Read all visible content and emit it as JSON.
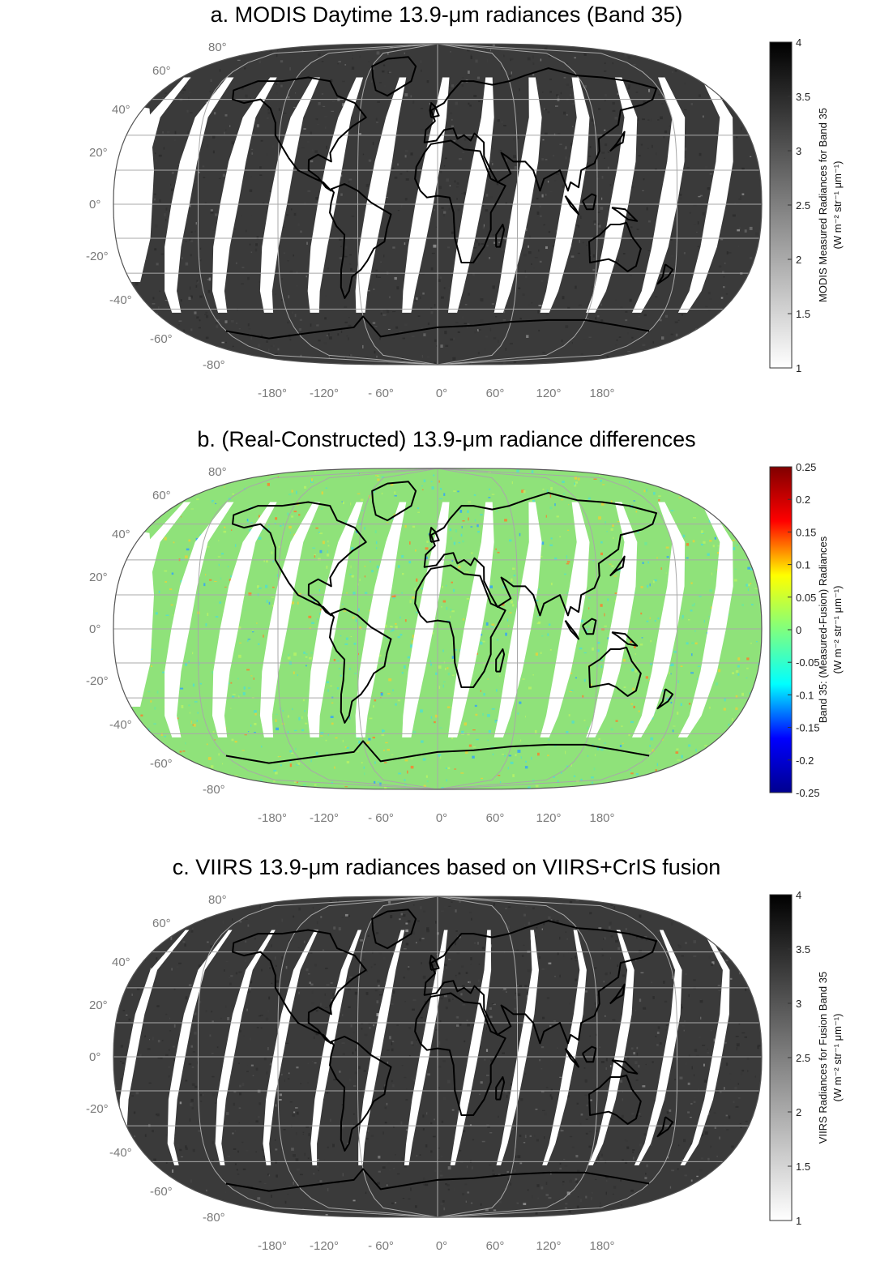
{
  "panels": [
    {
      "id": "a",
      "title": "a. MODIS Daytime 13.9-μm radiances (Band 35)",
      "scheme": "gray",
      "colorbar": {
        "label_line1": "MODIS Measured Radiances for Band 35",
        "label_line2": "(W m⁻² str⁻¹ μm⁻¹)",
        "ticks": [
          "4",
          "3.5",
          "3",
          "2.5",
          "2",
          "1.5",
          "1"
        ],
        "range": [
          1,
          4
        ],
        "colors": [
          "#ffffff",
          "#000000"
        ]
      }
    },
    {
      "id": "b",
      "title": "b. (Real-Constructed) 13.9-μm radiance differences",
      "scheme": "jet",
      "colorbar": {
        "label_line1": "Band 35: (Measured-Fusion) Radiances",
        "label_line2": "(W m⁻² str⁻¹ μm⁻¹)",
        "ticks": [
          "0.25",
          "0.2",
          "0.15",
          "0.1",
          "0.05",
          "0",
          "-0.05",
          "-0.1",
          "-0.15",
          "-0.2",
          "-0.25"
        ],
        "range": [
          -0.25,
          0.25
        ],
        "colors": [
          "#00008f",
          "#0000ff",
          "#00ffff",
          "#7fff7f",
          "#ffff00",
          "#ff0000",
          "#800000"
        ]
      }
    },
    {
      "id": "c",
      "title": "c. VIIRS 13.9-μm radiances based on VIIRS+CrIS fusion",
      "scheme": "gray",
      "colorbar": {
        "label_line1": "VIIRS Radiances for Fusion Band 35",
        "label_line2": "(W m⁻² str⁻¹ μm⁻¹)",
        "ticks": [
          "4",
          "3.5",
          "3",
          "2.5",
          "2",
          "1.5",
          "1"
        ],
        "range": [
          1,
          4
        ],
        "colors": [
          "#ffffff",
          "#000000"
        ]
      }
    }
  ],
  "lat_labels": [
    "80°",
    "60°",
    "40°",
    "20°",
    "0°",
    "-20°",
    "-40°",
    "-60°",
    "-80°"
  ],
  "lon_labels": [
    "-180°",
    "-120°",
    "- 60°",
    "0°",
    "60°",
    "120°",
    "180°"
  ],
  "map": {
    "projection": "Robinson",
    "graticule": true,
    "coastlines": true
  }
}
